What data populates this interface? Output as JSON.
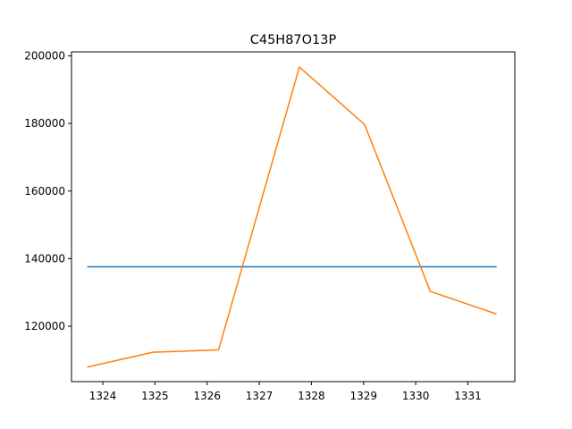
{
  "chart_data": {
    "type": "line",
    "title": "C45H87O13P",
    "xlabel": "",
    "ylabel": "",
    "xlim": [
      1323.4,
      1331.9
    ],
    "ylim": [
      103600,
      201200
    ],
    "x_ticks": [
      1324,
      1325,
      1326,
      1327,
      1328,
      1329,
      1330,
      1331
    ],
    "y_ticks": [
      120000,
      140000,
      160000,
      180000,
      200000
    ],
    "grid": false,
    "legend": "none",
    "series": [
      {
        "color": "#1f77b4",
        "x": [
          1323.7,
          1331.55
        ],
        "y": [
          137600,
          137600
        ]
      },
      {
        "color": "#ff7f0e",
        "x": [
          1323.7,
          1324.96,
          1326.22,
          1327.77,
          1329.02,
          1330.28,
          1331.55
        ],
        "y": [
          107900,
          112300,
          113000,
          196700,
          179700,
          130300,
          123600
        ]
      }
    ]
  }
}
